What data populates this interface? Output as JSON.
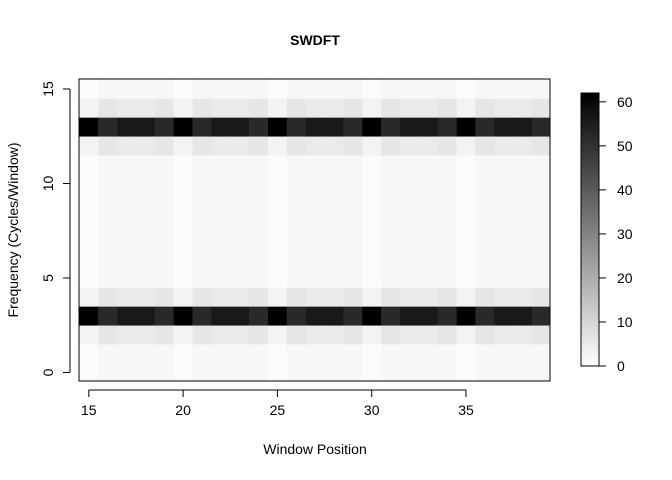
{
  "chart_data": {
    "type": "heatmap",
    "title": "SWDFT",
    "xlabel": "Window Position",
    "ylabel": "Frequency (Cycles/Window)",
    "x": [
      15,
      16,
      17,
      18,
      19,
      20,
      21,
      22,
      23,
      24,
      25,
      26,
      27,
      28,
      29,
      30,
      31,
      32,
      33,
      34,
      35,
      36,
      37,
      38,
      39
    ],
    "y": [
      0,
      1,
      2,
      3,
      4,
      5,
      6,
      7,
      8,
      9,
      10,
      11,
      12,
      13,
      14,
      15
    ],
    "xlim": [
      15,
      39
    ],
    "ylim": [
      0,
      15
    ],
    "x_ticks": [
      15,
      20,
      25,
      30,
      35
    ],
    "y_ticks": [
      0,
      5,
      10,
      15
    ],
    "x_tick_labels": [
      "15",
      "20",
      "25",
      "30",
      "35"
    ],
    "y_tick_labels": [
      "0",
      "5",
      "10",
      "15"
    ],
    "colorbar": {
      "range": [
        0,
        62
      ],
      "ticks": [
        0,
        10,
        20,
        30,
        40,
        50,
        60
      ],
      "tick_labels": [
        "0",
        "10",
        "20",
        "30",
        "40",
        "50",
        "60"
      ],
      "low_color": "#ffffff",
      "high_color": "#000000"
    },
    "dominant_rows": [
      3,
      13
    ],
    "dominant_values": [
      62,
      52,
      56,
      56,
      52,
      62,
      52,
      56,
      56,
      52,
      62,
      52,
      56,
      56,
      52,
      62,
      52,
      56,
      56,
      52,
      62,
      52,
      56,
      56,
      52
    ],
    "near_band_values": [
      3,
      6,
      5,
      5,
      6,
      3,
      6,
      5,
      5,
      6,
      3,
      6,
      5,
      5,
      6,
      3,
      6,
      5,
      5,
      6,
      3,
      6,
      5,
      5,
      6
    ],
    "background_values": [
      1,
      2,
      2,
      2,
      2,
      1,
      2,
      2,
      2,
      2,
      1,
      2,
      2,
      2,
      2,
      1,
      2,
      2,
      2,
      2,
      1,
      2,
      2,
      2,
      2
    ]
  }
}
